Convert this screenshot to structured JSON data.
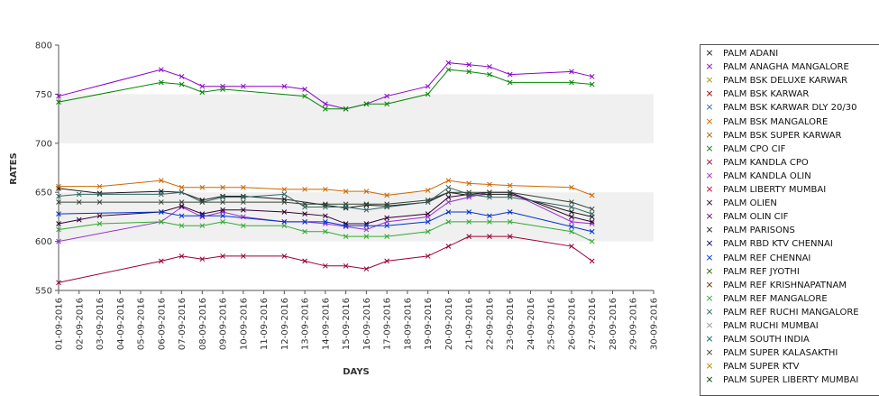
{
  "chart_data": {
    "type": "line",
    "xlabel": "DAYS",
    "ylabel": "RATES",
    "ylim": [
      550,
      800
    ],
    "yticks": [
      550,
      600,
      650,
      700,
      750,
      800
    ],
    "categories": [
      "01-09-2016",
      "02-09-2016",
      "03-09-2016",
      "04-09-2016",
      "05-09-2016",
      "06-09-2016",
      "07-09-2016",
      "08-09-2016",
      "09-09-2016",
      "10-09-2016",
      "11-09-2016",
      "12-09-2016",
      "13-09-2016",
      "14-09-2016",
      "15-09-2016",
      "16-09-2016",
      "17-09-2016",
      "18-09-2016",
      "19-09-2016",
      "20-09-2016",
      "21-09-2016",
      "22-09-2016",
      "23-09-2016",
      "24-09-2016",
      "25-09-2016",
      "26-09-2016",
      "27-09-2016",
      "28-09-2016",
      "29-09-2016",
      "30-09-2016"
    ],
    "series": [
      {
        "name": "PALM ADANI",
        "color": "#1a1a1a",
        "values": [
          654,
          null,
          649,
          null,
          null,
          651,
          650,
          642,
          646,
          646,
          null,
          643,
          null,
          637,
          634,
          637,
          636,
          null,
          640,
          650,
          647,
          648,
          648,
          null,
          null,
          630,
          625,
          null,
          null,
          null
        ]
      },
      {
        "name": "PALM ANAGHA MANGALORE",
        "color": "#8a00cc",
        "values": [
          748,
          null,
          null,
          null,
          null,
          775,
          768,
          758,
          758,
          758,
          null,
          758,
          755,
          740,
          735,
          740,
          748,
          null,
          758,
          782,
          780,
          778,
          770,
          null,
          null,
          773,
          768,
          null,
          null,
          null
        ]
      },
      {
        "name": "PALM BSK DELUXE KARWAR",
        "color": "#999900",
        "values": [
          null,
          null,
          null,
          null,
          null,
          null,
          null,
          null,
          null,
          null,
          null,
          null,
          null,
          null,
          null,
          null,
          null,
          null,
          null,
          null,
          null,
          null,
          null,
          null,
          null,
          null,
          null,
          null,
          null,
          null
        ]
      },
      {
        "name": "PALM BSK KARWAR",
        "color": "#8b0000",
        "values": [
          null,
          null,
          null,
          null,
          null,
          null,
          null,
          null,
          null,
          null,
          null,
          null,
          null,
          null,
          null,
          null,
          null,
          null,
          null,
          null,
          null,
          null,
          null,
          null,
          null,
          null,
          null,
          null,
          null,
          null
        ]
      },
      {
        "name": "PALM BSK KARWAR DLY 20/30",
        "color": "#336699",
        "values": [
          null,
          null,
          null,
          null,
          null,
          null,
          null,
          null,
          null,
          null,
          null,
          null,
          null,
          null,
          null,
          null,
          null,
          null,
          null,
          null,
          null,
          null,
          null,
          null,
          null,
          null,
          null,
          null,
          null,
          null
        ]
      },
      {
        "name": "PALM BSK MANGALORE",
        "color": "#cc6600",
        "values": [
          656,
          null,
          656,
          null,
          null,
          662,
          655,
          655,
          655,
          655,
          null,
          653,
          653,
          653,
          651,
          651,
          647,
          null,
          652,
          662,
          659,
          658,
          657,
          null,
          null,
          655,
          647,
          null,
          null,
          null
        ]
      },
      {
        "name": "PALM BSK SUPER KARWAR",
        "color": "#996600",
        "values": [
          null,
          null,
          null,
          null,
          null,
          null,
          null,
          null,
          null,
          null,
          null,
          null,
          null,
          null,
          null,
          null,
          null,
          null,
          null,
          null,
          null,
          null,
          null,
          null,
          null,
          null,
          null,
          null,
          null,
          null
        ]
      },
      {
        "name": "PALM CPO CIF",
        "color": "#008800",
        "values": [
          742,
          null,
          null,
          null,
          null,
          762,
          760,
          752,
          755,
          null,
          null,
          null,
          748,
          735,
          735,
          740,
          740,
          null,
          750,
          775,
          773,
          770,
          762,
          null,
          null,
          762,
          760,
          null,
          null,
          null
        ]
      },
      {
        "name": "PALM KANDLA CPO",
        "color": "#990033",
        "values": [
          558,
          null,
          null,
          null,
          null,
          580,
          585,
          582,
          585,
          585,
          null,
          585,
          580,
          575,
          575,
          572,
          580,
          null,
          585,
          595,
          605,
          605,
          605,
          null,
          null,
          595,
          580,
          null,
          null,
          null
        ]
      },
      {
        "name": "PALM KANDLA OLIN",
        "color": "#9933cc",
        "values": [
          600,
          null,
          null,
          null,
          null,
          620,
          635,
          625,
          630,
          625,
          null,
          620,
          620,
          618,
          615,
          612,
          620,
          null,
          625,
          640,
          645,
          650,
          650,
          null,
          null,
          620,
          618,
          null,
          null,
          null
        ]
      },
      {
        "name": "PALM LIBERTY MUMBAI",
        "color": "#cc0033",
        "values": [
          null,
          null,
          null,
          null,
          null,
          null,
          null,
          null,
          null,
          null,
          null,
          null,
          null,
          null,
          null,
          null,
          null,
          null,
          null,
          null,
          null,
          null,
          null,
          null,
          null,
          null,
          null,
          null,
          null,
          null
        ]
      },
      {
        "name": "PALM OLIEN",
        "color": "#330033",
        "values": [
          618,
          622,
          626,
          null,
          null,
          630,
          636,
          628,
          632,
          632,
          null,
          630,
          628,
          626,
          618,
          618,
          624,
          null,
          628,
          645,
          648,
          650,
          650,
          null,
          null,
          625,
          620,
          null,
          null,
          null
        ]
      },
      {
        "name": "PALM OLIN CIF",
        "color": "#660066",
        "values": [
          null,
          null,
          null,
          null,
          null,
          null,
          null,
          null,
          null,
          null,
          null,
          null,
          null,
          null,
          null,
          null,
          null,
          null,
          null,
          null,
          null,
          null,
          null,
          null,
          null,
          null,
          null,
          null,
          null,
          null
        ]
      },
      {
        "name": "PALM PARISONS",
        "color": "#222222",
        "values": [
          null,
          null,
          null,
          null,
          null,
          null,
          null,
          null,
          null,
          null,
          null,
          null,
          null,
          null,
          null,
          null,
          null,
          null,
          null,
          null,
          null,
          null,
          null,
          null,
          null,
          null,
          null,
          null,
          null,
          null
        ]
      },
      {
        "name": "PALM RBD KTV CHENNAI",
        "color": "#000066",
        "values": [
          null,
          null,
          null,
          null,
          null,
          null,
          null,
          null,
          null,
          null,
          null,
          null,
          null,
          null,
          null,
          null,
          null,
          null,
          null,
          null,
          null,
          null,
          null,
          null,
          null,
          null,
          null,
          null,
          null,
          null
        ]
      },
      {
        "name": "PALM REF CHENNAI",
        "color": "#0033cc",
        "values": [
          628,
          null,
          null,
          null,
          null,
          630,
          626,
          626,
          626,
          null,
          null,
          620,
          620,
          620,
          616,
          616,
          616,
          null,
          620,
          630,
          630,
          626,
          630,
          null,
          null,
          615,
          610,
          null,
          null,
          null
        ]
      },
      {
        "name": "PALM REF JYOTHI",
        "color": "#336600",
        "values": [
          null,
          null,
          null,
          null,
          null,
          null,
          null,
          null,
          null,
          null,
          null,
          null,
          null,
          null,
          null,
          null,
          null,
          null,
          null,
          null,
          null,
          null,
          null,
          null,
          null,
          null,
          null,
          null,
          null,
          null
        ]
      },
      {
        "name": "PALM REF KRISHNAPATNAM",
        "color": "#663300",
        "values": [
          null,
          null,
          null,
          null,
          null,
          null,
          null,
          null,
          null,
          null,
          null,
          null,
          null,
          null,
          null,
          null,
          null,
          null,
          null,
          null,
          null,
          null,
          null,
          null,
          null,
          null,
          null,
          null,
          null,
          null
        ]
      },
      {
        "name": "PALM REF MANGALORE",
        "color": "#33aa33",
        "values": [
          612,
          null,
          618,
          null,
          null,
          620,
          616,
          616,
          620,
          616,
          null,
          616,
          610,
          610,
          605,
          605,
          605,
          null,
          610,
          620,
          620,
          620,
          620,
          null,
          null,
          610,
          600,
          null,
          null,
          null
        ]
      },
      {
        "name": "PALM REF RUCHI MANGALORE",
        "color": "#336666",
        "values": [
          646,
          648,
          648,
          null,
          null,
          648,
          650,
          640,
          645,
          645,
          null,
          648,
          635,
          635,
          635,
          632,
          635,
          null,
          640,
          655,
          648,
          645,
          645,
          null,
          null,
          635,
          628,
          null,
          null,
          null
        ]
      },
      {
        "name": "PALM RUCHI MUMBAI",
        "color": "#999999",
        "values": [
          null,
          null,
          null,
          null,
          null,
          null,
          null,
          null,
          null,
          null,
          null,
          null,
          null,
          null,
          null,
          null,
          null,
          null,
          null,
          null,
          null,
          null,
          null,
          null,
          null,
          null,
          null,
          null,
          null,
          null
        ]
      },
      {
        "name": "PALM SOUTH INDIA",
        "color": "#006666",
        "values": [
          null,
          null,
          null,
          null,
          null,
          null,
          null,
          null,
          null,
          null,
          null,
          null,
          null,
          null,
          null,
          null,
          null,
          null,
          null,
          null,
          null,
          null,
          null,
          null,
          null,
          null,
          null,
          null,
          null,
          null
        ]
      },
      {
        "name": "PALM SUPER KALASAKTHI",
        "color": "#334433",
        "values": [
          640,
          640,
          640,
          null,
          null,
          640,
          640,
          640,
          640,
          640,
          null,
          640,
          638,
          638,
          638,
          638,
          638,
          null,
          642,
          650,
          650,
          650,
          650,
          null,
          null,
          640,
          633,
          null,
          null,
          null
        ]
      },
      {
        "name": "PALM SUPER KTV",
        "color": "#aa8800",
        "values": [
          null,
          null,
          null,
          null,
          null,
          null,
          null,
          null,
          null,
          null,
          null,
          null,
          null,
          null,
          null,
          null,
          null,
          null,
          null,
          null,
          null,
          null,
          null,
          null,
          null,
          null,
          null,
          null,
          null,
          null
        ]
      },
      {
        "name": "PALM SUPER LIBERTY MUMBAI",
        "color": "#004400",
        "values": [
          null,
          null,
          null,
          null,
          null,
          null,
          null,
          null,
          null,
          null,
          null,
          null,
          null,
          null,
          null,
          null,
          null,
          null,
          null,
          null,
          null,
          null,
          null,
          null,
          null,
          null,
          null,
          null,
          null,
          null
        ]
      }
    ],
    "bands": [
      [
        600,
        650
      ],
      [
        700,
        750
      ]
    ],
    "grid": false,
    "legend": "right"
  }
}
